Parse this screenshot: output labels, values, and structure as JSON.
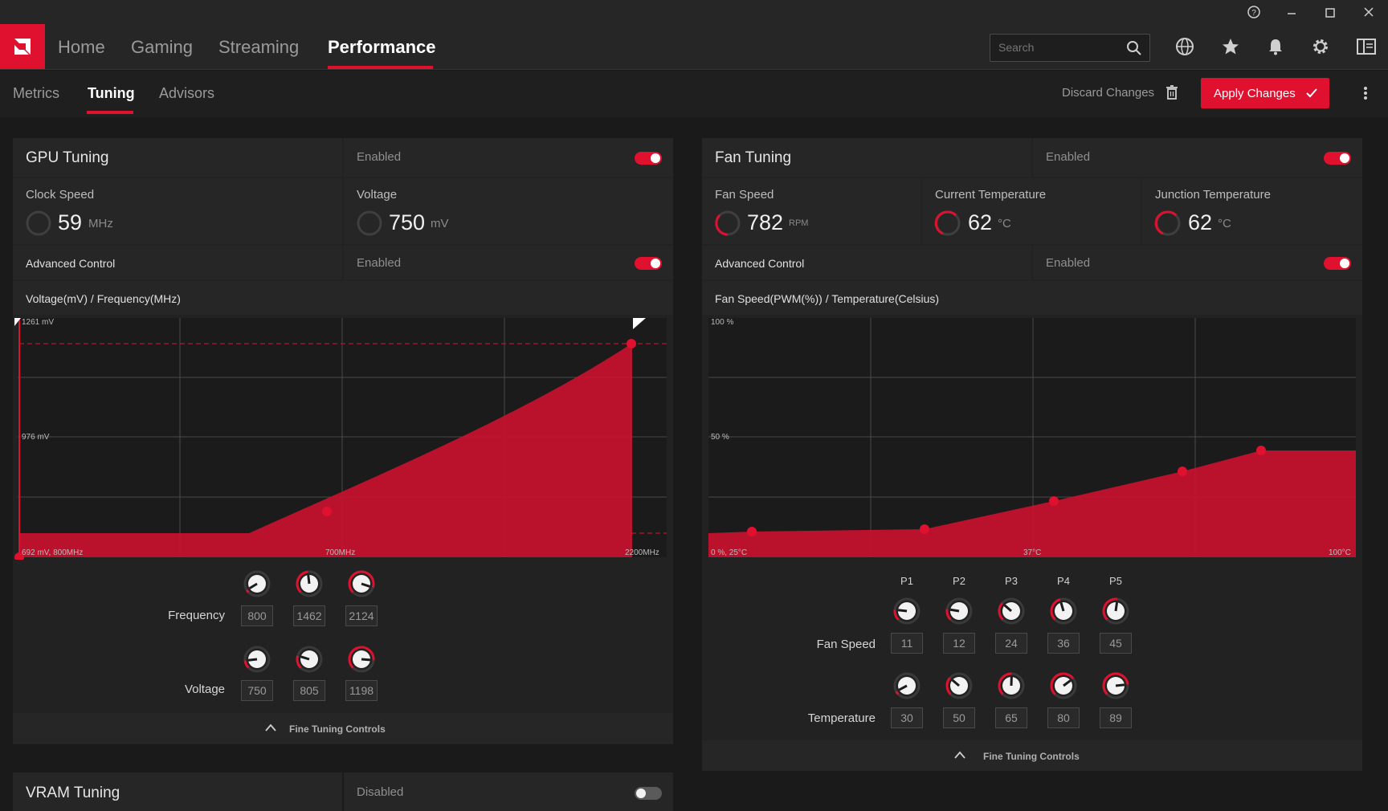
{
  "colors": {
    "accent": "#e0102f",
    "bg": "#1a1a1b",
    "panel": "#262627"
  },
  "nav": {
    "tabs": [
      {
        "label": "Home"
      },
      {
        "label": "Gaming"
      },
      {
        "label": "Streaming"
      },
      {
        "label": "Performance",
        "active": true
      }
    ]
  },
  "search": {
    "placeholder": "Search"
  },
  "subnav": {
    "tabs": [
      {
        "label": "Metrics"
      },
      {
        "label": "Tuning",
        "active": true
      },
      {
        "label": "Advisors"
      }
    ]
  },
  "actions": {
    "discard": "Discard Changes",
    "apply": "Apply Changes"
  },
  "gpu": {
    "title": "GPU Tuning",
    "status": "Enabled",
    "clock": {
      "label": "Clock Speed",
      "value": "59",
      "unit": "MHz"
    },
    "voltage": {
      "label": "Voltage",
      "value": "750",
      "unit": "mV"
    },
    "advanced": {
      "label": "Advanced Control",
      "status": "Enabled"
    },
    "chart_title": "Voltage(mV) / Frequency(MHz)",
    "axis": {
      "ytop": "1261 mV",
      "ymid": "976 mV",
      "origin": "692 mV, 800MHz",
      "xmid": "700MHz",
      "xend": "2200MHz"
    },
    "freq_label": "Frequency",
    "volt_label": "Voltage",
    "freq_values": [
      "800",
      "1462",
      "2124"
    ],
    "volt_values": [
      "750",
      "805",
      "1198"
    ],
    "fine": "Fine Tuning Controls"
  },
  "fan": {
    "title": "Fan Tuning",
    "status": "Enabled",
    "speed": {
      "label": "Fan Speed",
      "value": "782",
      "unit": "RPM"
    },
    "temp": {
      "label": "Current Temperature",
      "value": "62",
      "unit": "°C"
    },
    "junction": {
      "label": "Junction Temperature",
      "value": "62",
      "unit": "°C"
    },
    "advanced": {
      "label": "Advanced Control",
      "status": "Enabled"
    },
    "chart_title": "Fan Speed(PWM(%)) / Temperature(Celsius)",
    "axis": {
      "ytop": "100 %",
      "ymid": "50 %",
      "origin": "0 %, 25°C",
      "xmid": "37°C",
      "xend": "100°C"
    },
    "points": [
      "P1",
      "P2",
      "P3",
      "P4",
      "P5"
    ],
    "speed_label": "Fan Speed",
    "temp_label": "Temperature",
    "speed_values": [
      "11",
      "12",
      "24",
      "36",
      "45"
    ],
    "temp_values": [
      "30",
      "50",
      "65",
      "80",
      "89"
    ],
    "fine": "Fine Tuning Controls"
  },
  "vram": {
    "title": "VRAM Tuning",
    "status": "Disabled"
  }
}
